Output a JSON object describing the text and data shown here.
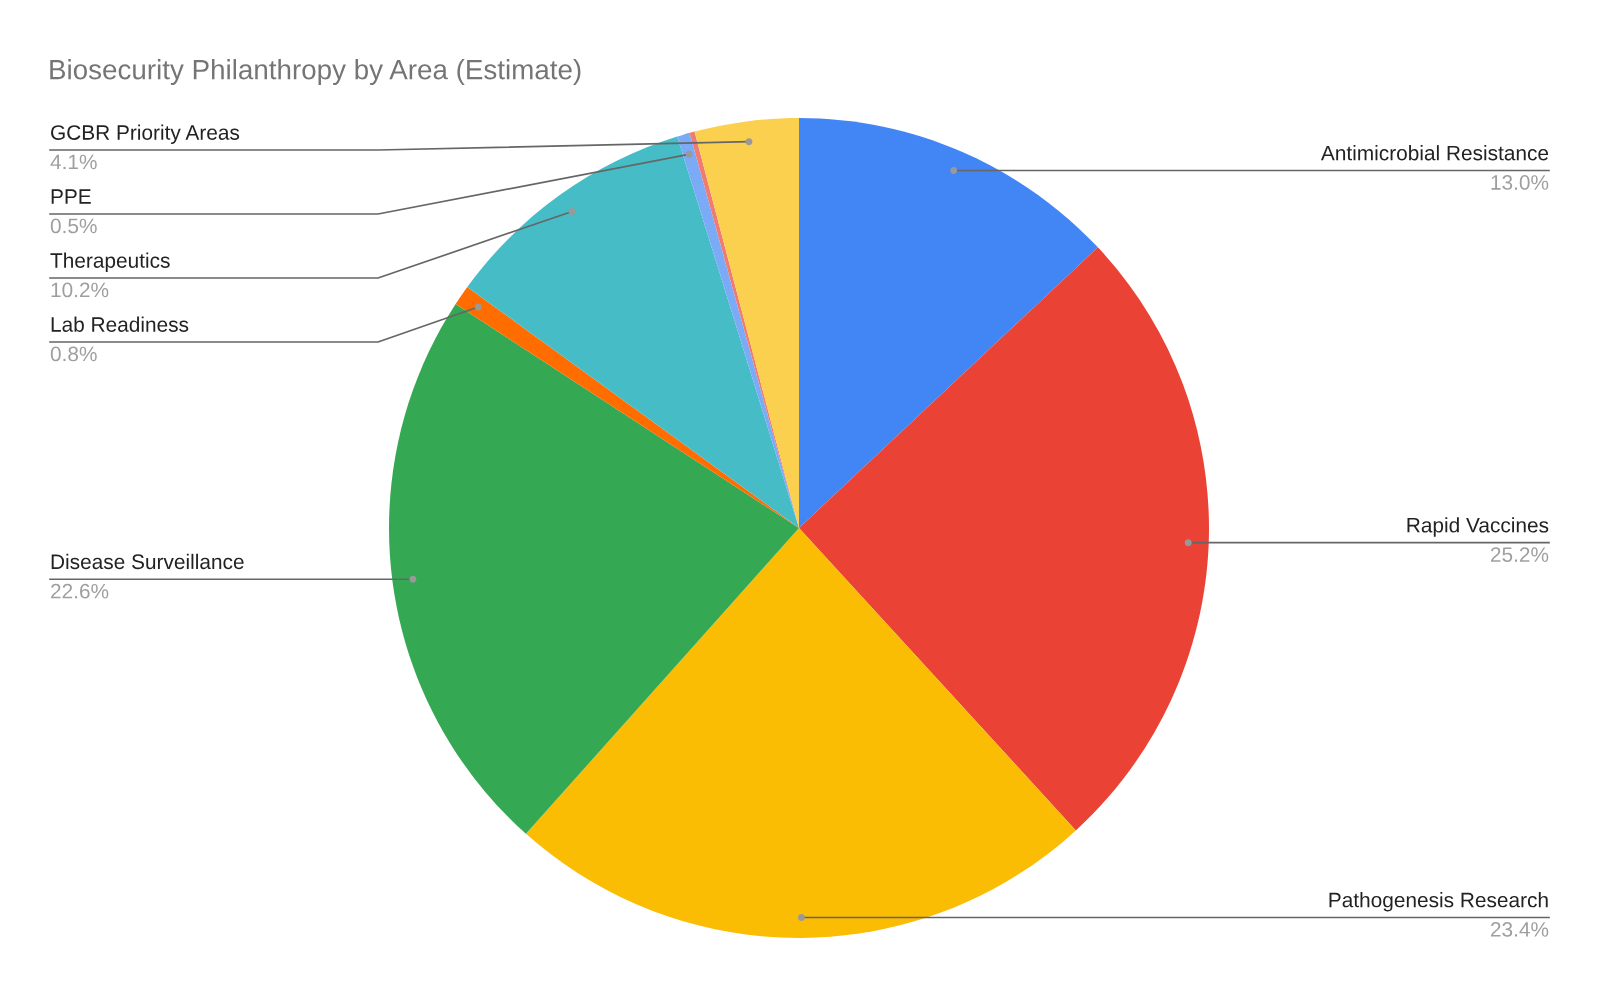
{
  "chart_data": {
    "type": "pie",
    "title": "Biosecurity Philanthropy by Area (Estimate)",
    "categories": [
      "Antimicrobial Resistance",
      "Rapid Vaccines",
      "Pathogenesis Research",
      "Disease Surveillance",
      "Lab Readiness",
      "Therapeutics",
      "PPE",
      null,
      "GCBR Priority Areas"
    ],
    "values": [
      13.0,
      25.2,
      23.4,
      22.6,
      0.8,
      10.2,
      0.5,
      0.2,
      4.1
    ],
    "colors": [
      "#4285f4",
      "#ea4335",
      "#fbbc04",
      "#34a853",
      "#ff6d01",
      "#46bdc6",
      "#7baaf7",
      "#f07b72",
      "#fcd04f"
    ],
    "value_labels": [
      "13.0%",
      "25.2%",
      "23.4%",
      "22.6%",
      "0.8%",
      "10.2%",
      "0.5%",
      null,
      "4.1%"
    ],
    "legend": false
  }
}
